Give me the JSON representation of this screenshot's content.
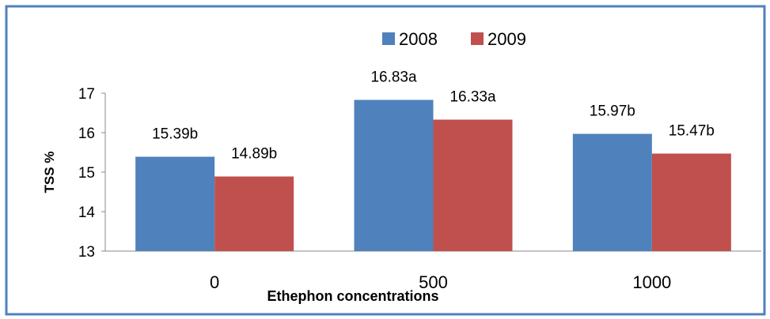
{
  "chart_data": {
    "type": "bar",
    "categories": [
      "0",
      "500",
      "1000"
    ],
    "series": [
      {
        "name": "2008",
        "values": [
          15.39,
          16.83,
          15.97
        ],
        "labels": [
          "15.39b",
          "16.83a",
          "15.97b"
        ],
        "color": "#4F81BD"
      },
      {
        "name": "2009",
        "values": [
          14.89,
          16.33,
          15.47
        ],
        "labels": [
          "14.89b",
          "16.33a",
          "15.47b"
        ],
        "color": "#C0504D"
      }
    ],
    "title": "",
    "xlabel": "Ethephon concentrations",
    "ylabel": "TSS %",
    "ylim": [
      13,
      17
    ],
    "yticks": [
      13,
      14,
      15,
      16,
      17
    ],
    "grid": false,
    "legend": "top-center",
    "frame_color": "#4F81BD"
  }
}
